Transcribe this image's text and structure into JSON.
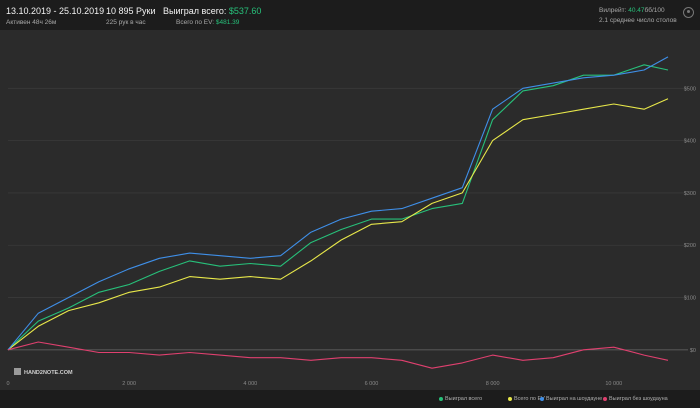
{
  "header": {
    "date_range": "13.10.2019 - 25.10.2019",
    "active_time": "Активен 48ч 26м",
    "hands": "10 895 Руки",
    "hands_per_hour": "225 рук в час",
    "won_label": "Выиграл всего:",
    "won_value": "$537.60",
    "ev_label": "Всего по EV:",
    "ev_value": "$481.39",
    "vpip_label": "Вилрейт:",
    "vpip_value": "40.47",
    "vpip_suffix": "бб/100",
    "tables": "2.1 среднее число столов"
  },
  "watermark": "HAND2NOTE.COM",
  "legend": [
    {
      "label": "Выиграл всего",
      "color": "#27c07a"
    },
    {
      "label": "Всего по EV",
      "color": "#e8e84a"
    },
    {
      "label": "Выиграл на шоудауне",
      "color": "#3f8fe8"
    },
    {
      "label": "Выиграл без шоудауна",
      "color": "#e0406f"
    }
  ],
  "colors": {
    "background": "#1c1c1c",
    "plot": "#2b2b2b",
    "grid": "#3a3a3a",
    "zero": "#6a6a6a"
  },
  "chart_data": {
    "type": "line",
    "xlim": [
      0,
      10895
    ],
    "ylim": [
      -50,
      600
    ],
    "x_ticks": [
      0,
      2000,
      4000,
      6000,
      8000,
      10000
    ],
    "x_tick_labels": [
      "0",
      "2 000",
      "4 000",
      "6 000",
      "8 000",
      "10 000"
    ],
    "y_ticks": [
      0,
      100,
      200,
      300,
      400,
      500
    ],
    "y_tick_labels": [
      "$0",
      "$100",
      "$200",
      "$300",
      "$400",
      "$500"
    ],
    "grid": true,
    "legend_position": "bottom-right",
    "x": [
      0,
      500,
      1000,
      1500,
      2000,
      2500,
      3000,
      3500,
      4000,
      4500,
      5000,
      5500,
      6000,
      6500,
      7000,
      7500,
      8000,
      8500,
      9000,
      9500,
      10000,
      10500,
      10895
    ],
    "series": [
      {
        "name": "Выиграл всего",
        "color": "#27c07a",
        "values": [
          0,
          55,
          80,
          110,
          125,
          150,
          170,
          160,
          165,
          160,
          205,
          230,
          250,
          250,
          270,
          280,
          440,
          495,
          505,
          525,
          525,
          545,
          535
        ]
      },
      {
        "name": "Всего по EV",
        "color": "#e8e84a",
        "values": [
          0,
          45,
          75,
          90,
          110,
          120,
          140,
          135,
          140,
          135,
          170,
          210,
          240,
          245,
          280,
          300,
          400,
          440,
          450,
          460,
          470,
          460,
          480
        ]
      },
      {
        "name": "Выиграл на шоудауне",
        "color": "#3f8fe8",
        "values": [
          0,
          70,
          100,
          130,
          155,
          175,
          185,
          180,
          175,
          180,
          225,
          250,
          265,
          270,
          290,
          310,
          460,
          500,
          510,
          520,
          525,
          535,
          560
        ]
      },
      {
        "name": "Выиграл без шоудауна",
        "color": "#e0406f",
        "values": [
          0,
          15,
          5,
          -5,
          -5,
          -10,
          -5,
          -10,
          -15,
          -15,
          -20,
          -15,
          -15,
          -20,
          -35,
          -25,
          -10,
          -20,
          -15,
          0,
          5,
          -10,
          -20
        ]
      }
    ]
  }
}
